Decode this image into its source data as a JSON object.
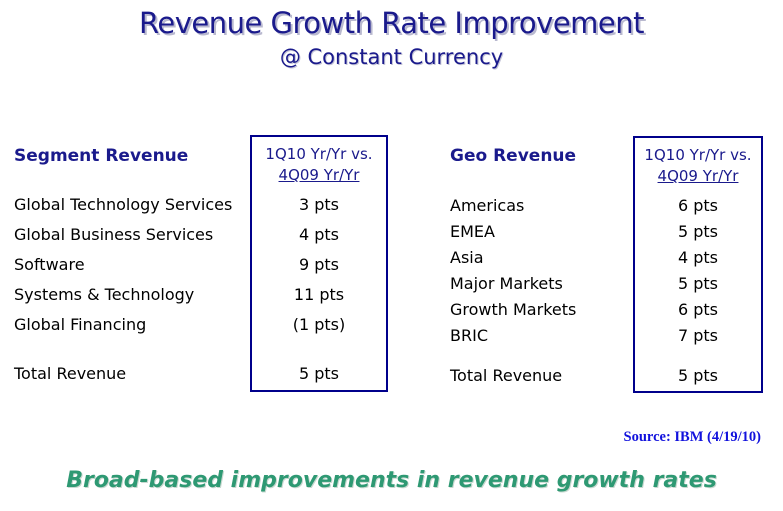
{
  "title": "Revenue Growth Rate Improvement",
  "subtitle": "@ Constant Currency",
  "tables": {
    "segment": {
      "heading": "Segment Revenue",
      "column_header_line1": "1Q10 Yr/Yr vs.",
      "column_header_line2": "4Q09 Yr/Yr",
      "rows": [
        {
          "label": "Global Technology Services",
          "value": "3 pts"
        },
        {
          "label": "Global Business Services",
          "value": "4 pts"
        },
        {
          "label": "Software",
          "value": "9 pts"
        },
        {
          "label": "Systems & Technology",
          "value": "11 pts"
        },
        {
          "label": "Global Financing",
          "value": "(1 pts)"
        }
      ],
      "total": {
        "label": "Total Revenue",
        "value": "5 pts"
      }
    },
    "geo": {
      "heading": "Geo Revenue",
      "column_header_line1": "1Q10 Yr/Yr vs.",
      "column_header_line2": "4Q09 Yr/Yr",
      "rows": [
        {
          "label": "Americas",
          "value": "6 pts"
        },
        {
          "label": "EMEA",
          "value": "5 pts"
        },
        {
          "label": "Asia",
          "value": "4 pts"
        },
        {
          "label": "Major Markets",
          "value": "5 pts"
        },
        {
          "label": "Growth Markets",
          "value": "6 pts"
        },
        {
          "label": "BRIC",
          "value": "7 pts"
        }
      ],
      "total": {
        "label": "Total Revenue",
        "value": "5 pts"
      }
    }
  },
  "source": "Source: IBM (4/19/10)",
  "footer": "Broad-based improvements in revenue growth rates",
  "colors": {
    "title_navy": "#1a1a8c",
    "box_border_navy": "#00008b",
    "body_text": "#000000",
    "source_blue": "#1212dd",
    "footer_green": "#2e9973",
    "background": "#ffffff"
  }
}
